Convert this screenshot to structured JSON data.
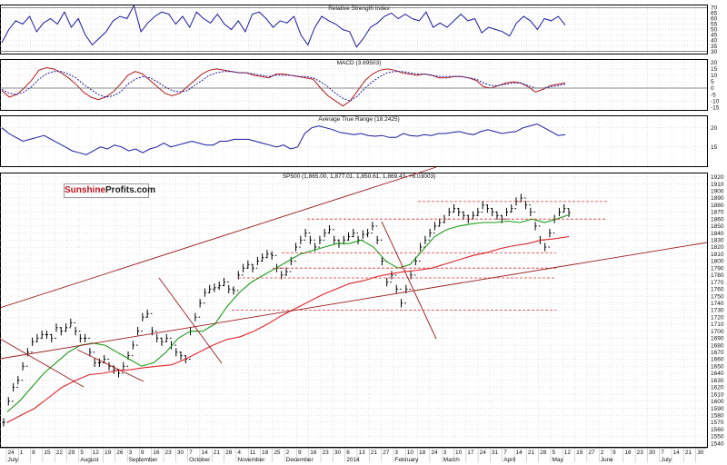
{
  "brand": {
    "part1": "Sunshine",
    "part2": "Profits.com"
  },
  "colors": {
    "price": "#000000",
    "ema_short": "#1a9a1a",
    "ema_long": "#e0222a",
    "trend": "#9a1a1a",
    "support": "#e03030",
    "indicator": "#1a1aa0",
    "macd": "#b01a1a",
    "grid": "#c8c8c8"
  },
  "chart_data": [
    {
      "type": "line",
      "title": "Relative Strength Index",
      "yticks": [
        70,
        65,
        60,
        55,
        50,
        45,
        40,
        35,
        30
      ],
      "ylim": [
        28,
        72
      ],
      "series": [
        {
          "values": [
            38,
            50,
            58,
            55,
            62,
            48,
            56,
            60,
            55,
            66,
            52,
            60,
            45,
            36,
            42,
            48,
            58,
            62,
            60,
            72,
            48,
            56,
            62,
            66,
            64,
            55,
            62,
            52,
            66,
            60,
            56,
            64,
            55,
            50,
            58,
            48,
            64,
            66,
            60,
            52,
            58,
            56,
            62,
            45,
            36,
            52,
            62,
            58,
            55,
            50,
            48,
            34,
            42,
            52,
            56,
            62,
            65,
            60,
            64,
            60,
            58,
            66,
            52,
            56,
            52,
            58,
            64,
            58,
            60,
            47,
            52,
            50,
            48,
            44,
            56,
            62,
            58,
            50,
            60,
            58,
            62,
            54
          ]
        }
      ]
    },
    {
      "type": "line",
      "title": "MACD (3.69503)",
      "yticks": [
        20,
        15,
        10,
        5,
        0,
        -5,
        -10,
        -15
      ],
      "ylim": [
        -17,
        22
      ],
      "series": [
        {
          "values": [
            -2,
            -7,
            -5,
            0,
            6,
            14,
            16,
            15,
            12,
            8,
            3,
            -3,
            -7,
            -9,
            -7,
            -3,
            3,
            10,
            13,
            11,
            6,
            1,
            -4,
            -6,
            -4,
            1,
            6,
            11,
            14,
            15,
            14,
            13,
            12,
            12,
            10,
            9,
            8,
            11,
            11,
            10,
            9,
            8,
            7,
            0,
            -6,
            -10,
            -14,
            -10,
            -2,
            6,
            11,
            14,
            15,
            14,
            12,
            11,
            10,
            11,
            10,
            8,
            8,
            9,
            9,
            8,
            6,
            1,
            0,
            2,
            4,
            5,
            4,
            1,
            -3,
            -1,
            2,
            3,
            4
          ]
        },
        {
          "values": [
            -1,
            -4,
            -5,
            -3,
            1,
            7,
            11,
            13,
            13,
            11,
            8,
            3,
            -1,
            -5,
            -7,
            -6,
            -3,
            3,
            7,
            9,
            8,
            5,
            1,
            -2,
            -3,
            -2,
            2,
            6,
            10,
            12,
            13,
            13,
            12,
            12,
            11,
            10,
            9,
            10,
            10,
            10,
            9,
            9,
            8,
            5,
            1,
            -4,
            -8,
            -10,
            -6,
            0,
            5,
            9,
            12,
            13,
            13,
            12,
            11,
            11,
            10,
            9,
            9,
            9,
            9,
            8,
            7,
            4,
            2,
            2,
            3,
            4,
            4,
            2,
            0,
            0,
            1,
            2,
            3
          ]
        }
      ]
    },
    {
      "type": "line",
      "title": "Average True Range (18.2425)",
      "yticks": [
        20,
        15
      ],
      "ylim": [
        10,
        23
      ],
      "series": [
        {
          "values": [
            20,
            18.5,
            17.5,
            16.5,
            17,
            17.5,
            18,
            17,
            16,
            15,
            14,
            13.5,
            13,
            14,
            15,
            14.5,
            15.5,
            15,
            14,
            14.5,
            13.5,
            14.5,
            15,
            16,
            15,
            15.5,
            16,
            16.5,
            16,
            15.5,
            15.5,
            16.5,
            16.5,
            17,
            17,
            17,
            16.5,
            16,
            15.5,
            15,
            15.5,
            14.5,
            15,
            18.5,
            20,
            20.5,
            20,
            19.5,
            18.8,
            18.5,
            18.2,
            18.5,
            18,
            17.8,
            18,
            17.5,
            17.5,
            18.5,
            18,
            17.8,
            18.2,
            18,
            18.5,
            18.5,
            18.8,
            19,
            18.5,
            18.2,
            19,
            19.5,
            19,
            18.5,
            18.8,
            19,
            20,
            20.5,
            21,
            20,
            19,
            18,
            18.2
          ]
        }
      ]
    },
    {
      "type": "line",
      "title": "SP500 (1,865.00, 1,877.01, 1,850.61, 1,869.43, +6.03003)",
      "yticks": [
        1920,
        1910,
        1900,
        1890,
        1880,
        1870,
        1860,
        1850,
        1840,
        1830,
        1820,
        1810,
        1800,
        1790,
        1780,
        1770,
        1760,
        1750,
        1740,
        1730,
        1720,
        1710,
        1700,
        1690,
        1680,
        1670,
        1660,
        1650,
        1640,
        1630,
        1620,
        1610,
        1600,
        1590,
        1580,
        1570,
        1560,
        1550,
        1540
      ],
      "ylim": [
        1535,
        1925
      ],
      "x_labels": [
        "24",
        "1",
        "8",
        "15",
        "22",
        "29",
        "5",
        "12",
        "19",
        "26",
        "3",
        "9",
        "16",
        "23",
        "30",
        "7",
        "14",
        "21",
        "28",
        "4",
        "11",
        "18",
        "25",
        "2",
        "9",
        "16",
        "23",
        "30",
        "6",
        "13",
        "21",
        "27",
        "3",
        "10",
        "18",
        "24",
        "3",
        "10",
        "17",
        "24",
        "31",
        "7",
        "14",
        "21",
        "28",
        "5",
        "12",
        "19",
        "27",
        "2",
        "9",
        "16",
        "23",
        "30",
        "7",
        "14",
        "21",
        "30"
      ],
      "month_labels": [
        "July",
        "August",
        "September",
        "October",
        "November",
        "December",
        "2014",
        "February",
        "March",
        "April",
        "May",
        "June",
        "July"
      ],
      "series": [
        {
          "name": "price",
          "values": [
            1570,
            1600,
            1620,
            1630,
            1650,
            1670,
            1685,
            1690,
            1695,
            1695,
            1690,
            1705,
            1700,
            1705,
            1712,
            1700,
            1690,
            1690,
            1670,
            1655,
            1655,
            1660,
            1650,
            1645,
            1640,
            1650,
            1665,
            1680,
            1700,
            1720,
            1725,
            1700,
            1690,
            1685,
            1690,
            1680,
            1670,
            1665,
            1660,
            1700,
            1720,
            1740,
            1755,
            1760,
            1762,
            1765,
            1770,
            1760,
            1758,
            1780,
            1790,
            1795,
            1790,
            1800,
            1805,
            1810,
            1808,
            1790,
            1780,
            1785,
            1800,
            1820,
            1830,
            1840,
            1830,
            1820,
            1830,
            1840,
            1845,
            1830,
            1825,
            1830,
            1835,
            1840,
            1830,
            1838,
            1840,
            1850,
            1830,
            1800,
            1770,
            1780,
            1760,
            1740,
            1760,
            1780,
            1800,
            1820,
            1830,
            1840,
            1850,
            1855,
            1860,
            1870,
            1875,
            1870,
            1865,
            1860,
            1865,
            1870,
            1880,
            1875,
            1870,
            1865,
            1860,
            1870,
            1875,
            1885,
            1890,
            1880,
            1870,
            1850,
            1830,
            1820,
            1840,
            1860,
            1870,
            1875,
            1869
          ]
        },
        {
          "name": "ema_short",
          "values": [
            1585,
            1600,
            1620,
            1640,
            1655,
            1670,
            1680,
            1683,
            1680,
            1670,
            1660,
            1650,
            1655,
            1670,
            1690,
            1700,
            1700,
            1710,
            1735,
            1755,
            1770,
            1780,
            1790,
            1800,
            1810,
            1815,
            1820,
            1825,
            1825,
            1830,
            1820,
            1800,
            1790,
            1795,
            1815,
            1835,
            1845,
            1850,
            1853,
            1855,
            1855,
            1857,
            1855,
            1860,
            1855,
            1860,
            1866
          ]
        },
        {
          "name": "ema_long",
          "values": [
            1570,
            1580,
            1590,
            1605,
            1620,
            1630,
            1638,
            1640,
            1644,
            1645,
            1648,
            1650,
            1652,
            1660,
            1670,
            1680,
            1688,
            1692,
            1700,
            1710,
            1722,
            1732,
            1742,
            1752,
            1760,
            1768,
            1772,
            1778,
            1782,
            1785,
            1787,
            1790,
            1796,
            1802,
            1808,
            1812,
            1818,
            1822,
            1825,
            1830,
            1832,
            1835
          ]
        },
        {
          "name": "support_resistance",
          "values": [
            1885,
            1860,
            1812,
            1790,
            1776,
            1730
          ]
        }
      ]
    }
  ]
}
